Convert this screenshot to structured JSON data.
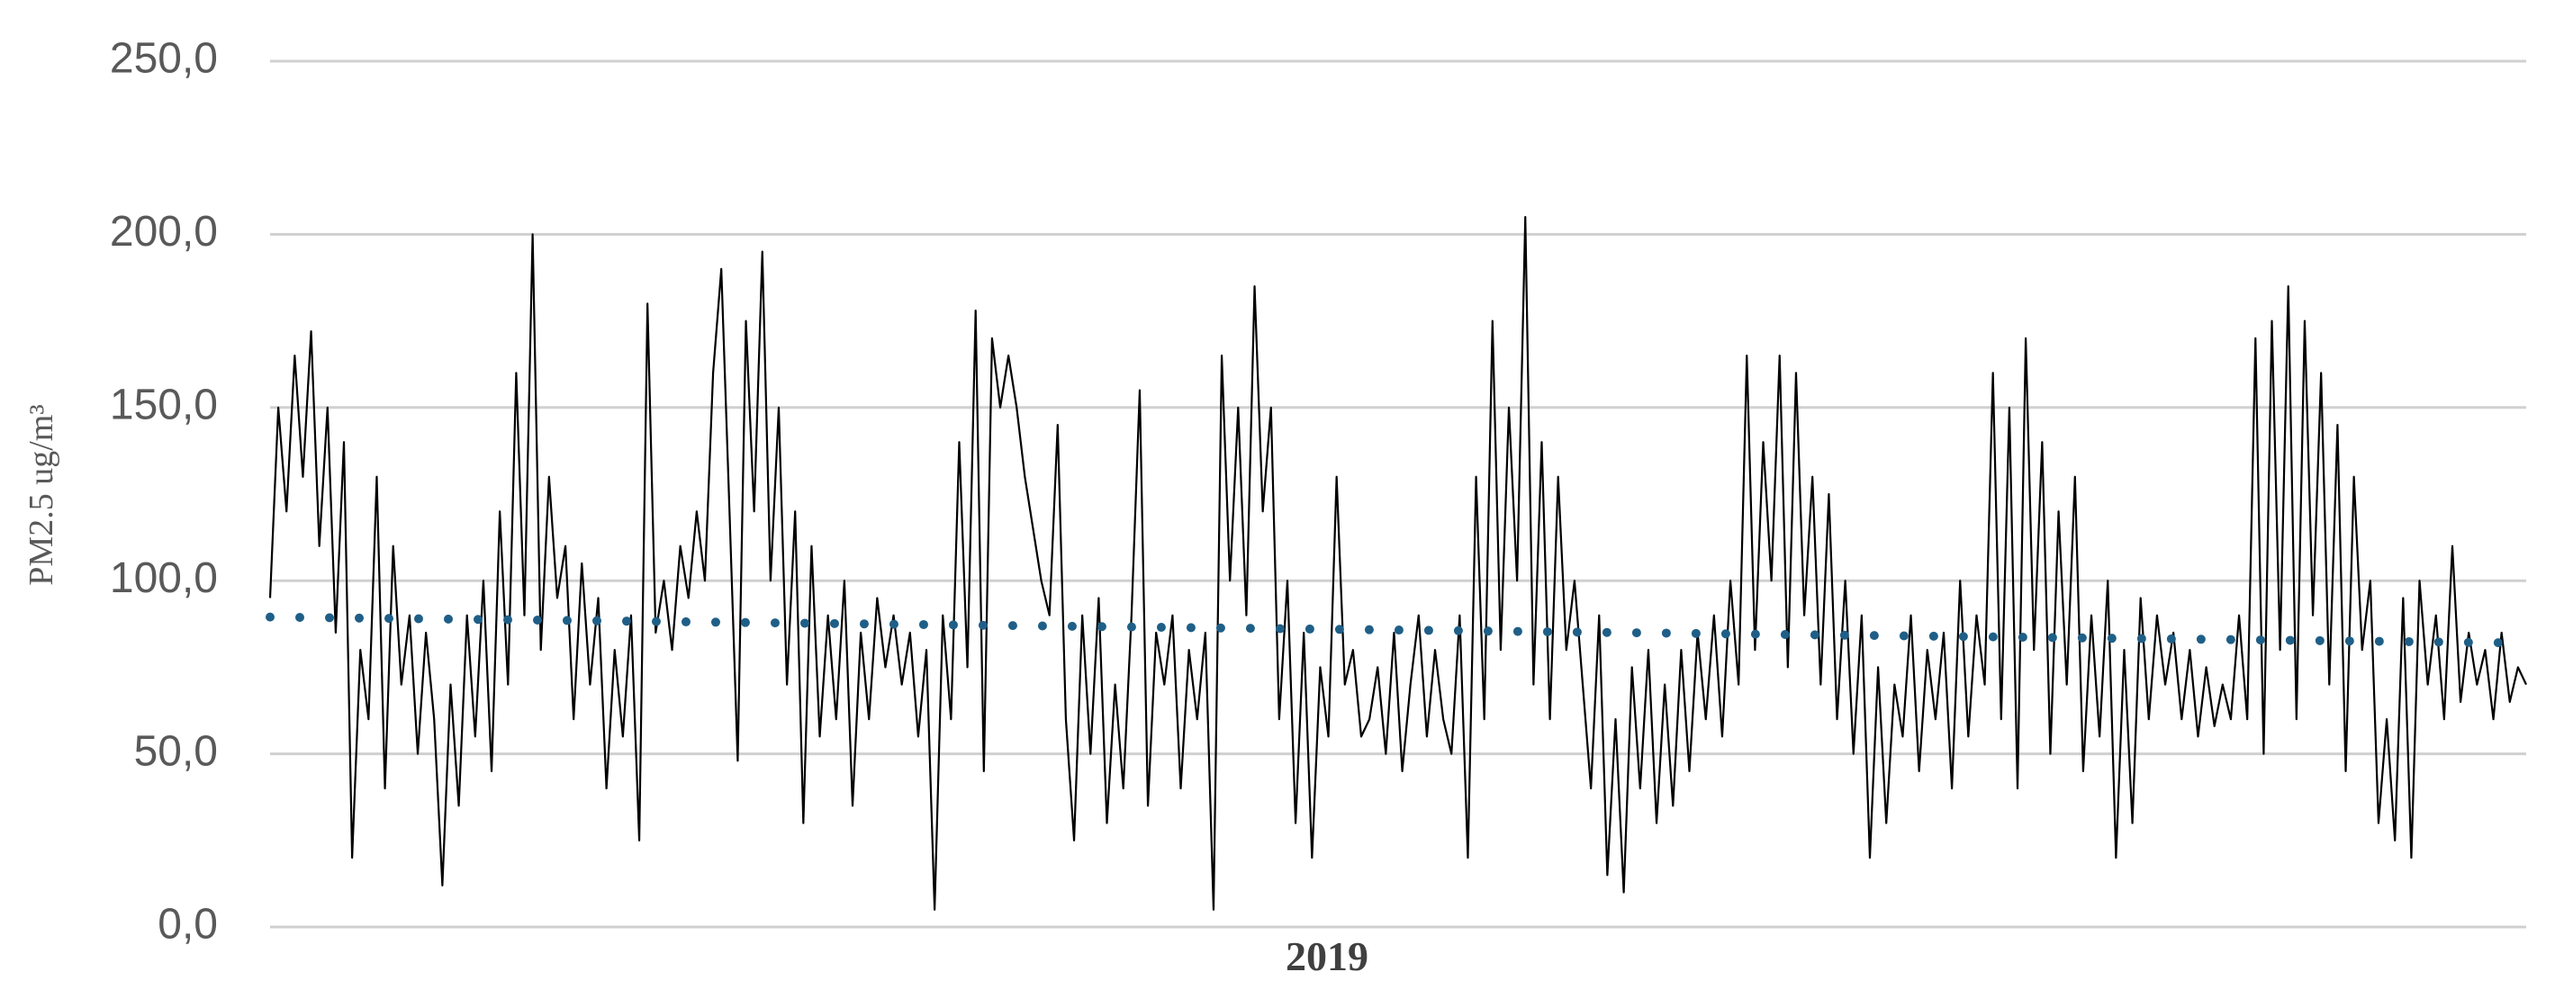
{
  "chart_data": {
    "type": "line",
    "ylabel": "PM2.5 ug/m³",
    "xlabel": "2019",
    "ylim": [
      0,
      250
    ],
    "yticks": [
      {
        "value": 0,
        "label": "0,0"
      },
      {
        "value": 50,
        "label": "50,0"
      },
      {
        "value": 100,
        "label": "100,0"
      },
      {
        "value": 150,
        "label": "150,0"
      },
      {
        "value": 200,
        "label": "200,0"
      },
      {
        "value": 250,
        "label": "250,0"
      }
    ],
    "grid": true,
    "series": [
      {
        "color": "#000000",
        "values": [
          95,
          150,
          120,
          165,
          130,
          172,
          110,
          150,
          85,
          140,
          20,
          80,
          60,
          130,
          40,
          110,
          70,
          90,
          50,
          85,
          60,
          12,
          70,
          35,
          90,
          55,
          100,
          45,
          120,
          70,
          160,
          90,
          200,
          80,
          130,
          95,
          110,
          60,
          105,
          70,
          95,
          40,
          80,
          55,
          90,
          25,
          180,
          85,
          100,
          80,
          110,
          95,
          120,
          100,
          160,
          190,
          120,
          48,
          175,
          120,
          195,
          100,
          150,
          70,
          120,
          30,
          110,
          55,
          90,
          60,
          100,
          35,
          85,
          60,
          95,
          75,
          90,
          70,
          85,
          55,
          80,
          5,
          90,
          60,
          140,
          75,
          178,
          45,
          170,
          150,
          165,
          150,
          130,
          115,
          100,
          90,
          145,
          60,
          25,
          90,
          50,
          95,
          30,
          70,
          40,
          90,
          155,
          35,
          85,
          70,
          90,
          40,
          80,
          60,
          85,
          5,
          165,
          100,
          150,
          90,
          185,
          120,
          150,
          60,
          100,
          30,
          85,
          20,
          75,
          55,
          130,
          70,
          80,
          55,
          60,
          75,
          50,
          85,
          45,
          70,
          90,
          55,
          80,
          60,
          50,
          90,
          20,
          130,
          60,
          175,
          80,
          150,
          100,
          205,
          70,
          140,
          60,
          130,
          80,
          100,
          70,
          40,
          90,
          15,
          60,
          10,
          75,
          40,
          80,
          30,
          70,
          35,
          80,
          45,
          85,
          60,
          90,
          55,
          100,
          70,
          165,
          80,
          140,
          100,
          165,
          75,
          160,
          90,
          130,
          70,
          125,
          60,
          100,
          50,
          90,
          20,
          75,
          30,
          70,
          55,
          90,
          45,
          80,
          60,
          85,
          40,
          100,
          55,
          90,
          70,
          160,
          60,
          150,
          40,
          170,
          80,
          140,
          50,
          120,
          70,
          130,
          45,
          90,
          55,
          100,
          20,
          80,
          30,
          95,
          60,
          90,
          70,
          85,
          60,
          80,
          55,
          75,
          58,
          70,
          60,
          90,
          60,
          170,
          50,
          175,
          80,
          185,
          60,
          175,
          90,
          160,
          70,
          145,
          45,
          130,
          80,
          100,
          30,
          60,
          25,
          95,
          20,
          100,
          70,
          90,
          60,
          110,
          65,
          85,
          70,
          80,
          60,
          85,
          65,
          75,
          70
        ]
      }
    ],
    "trendline": {
      "color": "#1f5f87",
      "values": [
        89.5,
        82
      ]
    }
  }
}
